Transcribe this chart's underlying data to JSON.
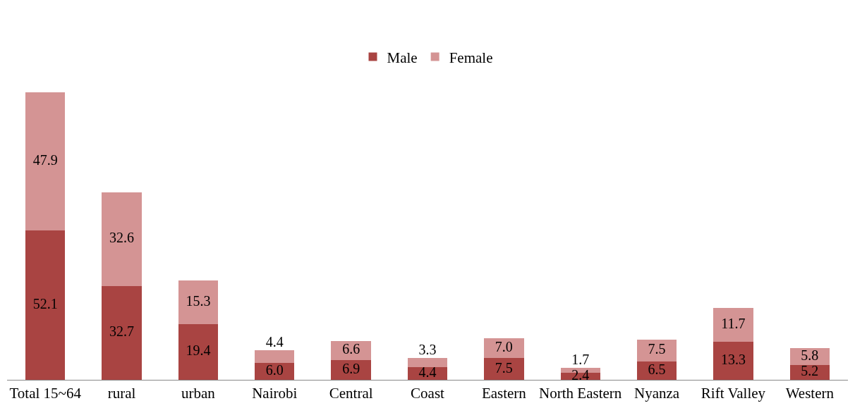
{
  "chart_data": {
    "type": "bar",
    "stacked": true,
    "legend": "top",
    "grid": false,
    "categories": [
      "Total 15~64",
      "rural",
      "urban",
      "Nairobi",
      "Central",
      "Coast",
      "Eastern",
      "North Eastern",
      "Nyanza",
      "Rift Valley",
      "Western"
    ],
    "series": [
      {
        "name": "Male",
        "color": "#a94442",
        "values": [
          52.1,
          32.7,
          19.4,
          6.0,
          6.9,
          4.4,
          7.5,
          2.4,
          6.5,
          13.3,
          5.2
        ],
        "value_labels": [
          "52.1",
          "32.7",
          "19.4",
          "6.0",
          "6.9",
          "4.4",
          "7.5",
          "2.4",
          "6.5",
          "13.3",
          "5.2"
        ]
      },
      {
        "name": "Female",
        "color": "#d49494",
        "values": [
          47.9,
          32.6,
          15.3,
          4.4,
          6.6,
          3.3,
          7.0,
          1.7,
          7.5,
          11.7,
          5.8
        ],
        "value_labels": [
          "47.9",
          "32.6",
          "15.3",
          "4.4",
          "6.6",
          "3.3",
          "7.0",
          "1.7",
          "7.5",
          "11.7",
          "5.8"
        ]
      }
    ]
  }
}
